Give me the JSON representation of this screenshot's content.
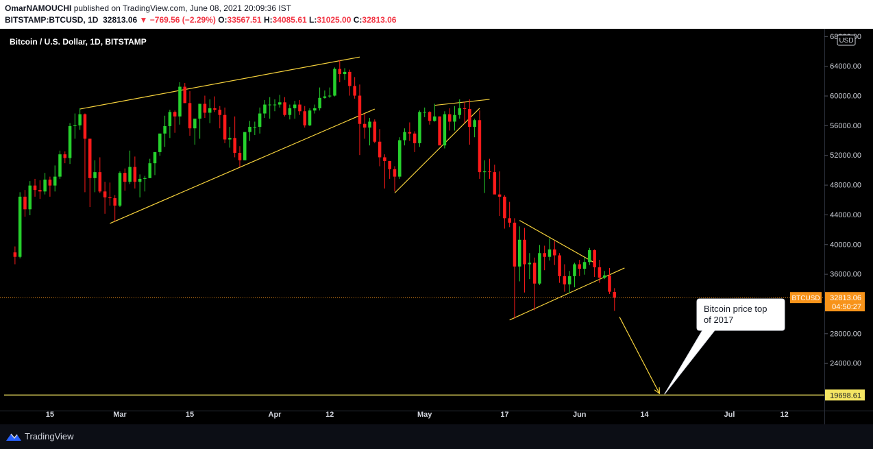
{
  "header": {
    "author": "OmarNAMOUCHI",
    "published_text": "published on TradingView.com, June 08, 2021 20:09:36 IST",
    "symbol": "BITSTAMP:BTCUSD, 1D",
    "last": "32813.06",
    "change": "−769.56 (−2.29%)",
    "open_label": "O:",
    "open": "33567.51",
    "high_label": "H:",
    "high": "34085.61",
    "low_label": "L:",
    "low": "31025.00",
    "close_label": "C:",
    "close": "32813.06"
  },
  "legend": {
    "title": "Bitcoin / U.S. Dollar, 1D, BITSTAMP"
  },
  "currency_badge": "USD",
  "price_tag": {
    "symbol": "BTCUSD",
    "price": "32813.06",
    "countdown": "04:50:27"
  },
  "level_tag": "19698.61",
  "annotation": {
    "line1": "Bitcoin price top",
    "line2": "of 2017"
  },
  "footer": {
    "brand": "TradingView"
  },
  "colors": {
    "up": "#26d12d",
    "down": "#ff1a1a",
    "trendline": "#f5d13c",
    "price_tag": "#f7931a",
    "level": "#f5e663",
    "grid_text": "#d1d4dc"
  },
  "chart_data": {
    "type": "candlestick",
    "y_axis_labels": [
      "68000.00",
      "64000.00",
      "60000.00",
      "56000.00",
      "52000.00",
      "48000.00",
      "44000.00",
      "40000.00",
      "36000.00",
      "32000.00",
      "28000.00",
      "24000.00"
    ],
    "ylim": [
      17600,
      69000
    ],
    "x_axis_labels": [
      "15",
      "Mar",
      "15",
      "Apr",
      "12",
      "May",
      "17",
      "Jun",
      "14",
      "Jul",
      "12"
    ],
    "x_axis_dates": [
      "2021-02-15",
      "2021-03-01",
      "2021-03-15",
      "2021-04-01",
      "2021-04-12",
      "2021-05-01",
      "2021-05-17",
      "2021-06-01",
      "2021-06-14",
      "2021-07-01",
      "2021-07-12"
    ],
    "date_range": [
      "2021-02-05",
      "2021-07-20"
    ],
    "horizontal_level": 19698.61,
    "last_price": 32813.06,
    "candles": [
      {
        "d": "2021-02-08",
        "o": 38900,
        "h": 39700,
        "l": 37300,
        "c": 38300
      },
      {
        "d": "2021-02-09",
        "o": 38300,
        "h": 47000,
        "l": 38100,
        "c": 46400
      },
      {
        "d": "2021-02-10",
        "o": 46400,
        "h": 47300,
        "l": 43700,
        "c": 44700
      },
      {
        "d": "2021-02-11",
        "o": 44700,
        "h": 48500,
        "l": 43900,
        "c": 47900
      },
      {
        "d": "2021-02-12",
        "o": 47900,
        "h": 48800,
        "l": 46400,
        "c": 47300
      },
      {
        "d": "2021-02-13",
        "o": 47300,
        "h": 48600,
        "l": 46100,
        "c": 47100
      },
      {
        "d": "2021-02-14",
        "o": 47100,
        "h": 49600,
        "l": 46700,
        "c": 48700
      },
      {
        "d": "2021-02-15",
        "o": 48700,
        "h": 49100,
        "l": 46400,
        "c": 47900
      },
      {
        "d": "2021-02-16",
        "o": 47900,
        "h": 50600,
        "l": 47100,
        "c": 49100
      },
      {
        "d": "2021-02-17",
        "o": 49100,
        "h": 52600,
        "l": 48800,
        "c": 52100
      },
      {
        "d": "2021-02-18",
        "o": 52100,
        "h": 52500,
        "l": 50900,
        "c": 51600
      },
      {
        "d": "2021-02-19",
        "o": 51600,
        "h": 56300,
        "l": 50800,
        "c": 55900
      },
      {
        "d": "2021-02-20",
        "o": 55900,
        "h": 57600,
        "l": 54200,
        "c": 56000
      },
      {
        "d": "2021-02-21",
        "o": 56000,
        "h": 58300,
        "l": 55400,
        "c": 57500
      },
      {
        "d": "2021-02-22",
        "o": 57500,
        "h": 57600,
        "l": 47000,
        "c": 54200
      },
      {
        "d": "2021-02-23",
        "o": 54200,
        "h": 54200,
        "l": 45000,
        "c": 48900
      },
      {
        "d": "2021-02-24",
        "o": 48900,
        "h": 51300,
        "l": 47000,
        "c": 49700
      },
      {
        "d": "2021-02-25",
        "o": 49700,
        "h": 51700,
        "l": 46900,
        "c": 47100
      },
      {
        "d": "2021-02-26",
        "o": 47100,
        "h": 48400,
        "l": 44100,
        "c": 46300
      },
      {
        "d": "2021-02-27",
        "o": 46300,
        "h": 48300,
        "l": 45200,
        "c": 46200
      },
      {
        "d": "2021-02-28",
        "o": 46200,
        "h": 46600,
        "l": 43100,
        "c": 45200
      },
      {
        "d": "2021-03-01",
        "o": 45200,
        "h": 49800,
        "l": 45000,
        "c": 49600
      },
      {
        "d": "2021-03-02",
        "o": 49600,
        "h": 50200,
        "l": 47200,
        "c": 48400
      },
      {
        "d": "2021-03-03",
        "o": 48400,
        "h": 52600,
        "l": 48100,
        "c": 50400
      },
      {
        "d": "2021-03-04",
        "o": 50400,
        "h": 51800,
        "l": 47500,
        "c": 48400
      },
      {
        "d": "2021-03-05",
        "o": 48400,
        "h": 49400,
        "l": 46300,
        "c": 48800
      },
      {
        "d": "2021-03-06",
        "o": 48800,
        "h": 49200,
        "l": 47100,
        "c": 48900
      },
      {
        "d": "2021-03-07",
        "o": 48900,
        "h": 51500,
        "l": 48900,
        "c": 50900
      },
      {
        "d": "2021-03-08",
        "o": 50900,
        "h": 52400,
        "l": 49300,
        "c": 52400
      },
      {
        "d": "2021-03-09",
        "o": 52400,
        "h": 54900,
        "l": 51900,
        "c": 54900
      },
      {
        "d": "2021-03-10",
        "o": 54900,
        "h": 57300,
        "l": 53100,
        "c": 55900
      },
      {
        "d": "2021-03-11",
        "o": 55900,
        "h": 58100,
        "l": 54300,
        "c": 57800
      },
      {
        "d": "2021-03-12",
        "o": 57800,
        "h": 58000,
        "l": 55000,
        "c": 57200
      },
      {
        "d": "2021-03-13",
        "o": 57200,
        "h": 61800,
        "l": 56100,
        "c": 61200
      },
      {
        "d": "2021-03-14",
        "o": 61200,
        "h": 61700,
        "l": 59000,
        "c": 59000
      },
      {
        "d": "2021-03-15",
        "o": 59000,
        "h": 60600,
        "l": 54600,
        "c": 55600
      },
      {
        "d": "2021-03-16",
        "o": 55600,
        "h": 56900,
        "l": 53400,
        "c": 56900
      },
      {
        "d": "2021-03-17",
        "o": 56900,
        "h": 58900,
        "l": 54200,
        "c": 58900
      },
      {
        "d": "2021-03-18",
        "o": 58900,
        "h": 60000,
        "l": 57000,
        "c": 57700
      },
      {
        "d": "2021-03-19",
        "o": 57700,
        "h": 59500,
        "l": 56300,
        "c": 58300
      },
      {
        "d": "2021-03-20",
        "o": 58300,
        "h": 59900,
        "l": 57800,
        "c": 58100
      },
      {
        "d": "2021-03-21",
        "o": 58100,
        "h": 58600,
        "l": 55600,
        "c": 57400
      },
      {
        "d": "2021-03-22",
        "o": 57400,
        "h": 58400,
        "l": 53600,
        "c": 54100
      },
      {
        "d": "2021-03-23",
        "o": 54100,
        "h": 55800,
        "l": 53000,
        "c": 54300
      },
      {
        "d": "2021-03-24",
        "o": 54300,
        "h": 57200,
        "l": 51700,
        "c": 52300
      },
      {
        "d": "2021-03-25",
        "o": 52300,
        "h": 53200,
        "l": 50400,
        "c": 51300
      },
      {
        "d": "2021-03-26",
        "o": 51300,
        "h": 55100,
        "l": 51300,
        "c": 55100
      },
      {
        "d": "2021-03-27",
        "o": 55100,
        "h": 56600,
        "l": 53900,
        "c": 55800
      },
      {
        "d": "2021-03-28",
        "o": 55800,
        "h": 56500,
        "l": 54700,
        "c": 55800
      },
      {
        "d": "2021-03-29",
        "o": 55800,
        "h": 58400,
        "l": 54900,
        "c": 57600
      },
      {
        "d": "2021-03-30",
        "o": 57600,
        "h": 59400,
        "l": 57000,
        "c": 58800
      },
      {
        "d": "2021-03-31",
        "o": 58800,
        "h": 59800,
        "l": 56900,
        "c": 58800
      },
      {
        "d": "2021-04-01",
        "o": 58800,
        "h": 59500,
        "l": 57900,
        "c": 58800
      },
      {
        "d": "2021-04-02",
        "o": 58800,
        "h": 60100,
        "l": 58400,
        "c": 59100
      },
      {
        "d": "2021-04-03",
        "o": 59100,
        "h": 59800,
        "l": 57200,
        "c": 57400
      },
      {
        "d": "2021-04-04",
        "o": 57400,
        "h": 58800,
        "l": 56800,
        "c": 58300
      },
      {
        "d": "2021-04-05",
        "o": 58300,
        "h": 59300,
        "l": 56900,
        "c": 58800
      },
      {
        "d": "2021-04-06",
        "o": 58800,
        "h": 59400,
        "l": 57400,
        "c": 57900
      },
      {
        "d": "2021-04-07",
        "o": 57900,
        "h": 58600,
        "l": 55700,
        "c": 56000
      },
      {
        "d": "2021-04-08",
        "o": 56000,
        "h": 58300,
        "l": 55900,
        "c": 58000
      },
      {
        "d": "2021-04-09",
        "o": 58000,
        "h": 58800,
        "l": 57600,
        "c": 58300
      },
      {
        "d": "2021-04-10",
        "o": 58300,
        "h": 61100,
        "l": 58000,
        "c": 59700
      },
      {
        "d": "2021-04-11",
        "o": 59700,
        "h": 60700,
        "l": 59600,
        "c": 59900
      },
      {
        "d": "2021-04-12",
        "o": 59900,
        "h": 61100,
        "l": 59700,
        "c": 60000
      },
      {
        "d": "2021-04-13",
        "o": 60000,
        "h": 63800,
        "l": 59900,
        "c": 63600
      },
      {
        "d": "2021-04-14",
        "o": 63600,
        "h": 64800,
        "l": 61800,
        "c": 62900
      },
      {
        "d": "2021-04-15",
        "o": 62900,
        "h": 63700,
        "l": 62100,
        "c": 63200
      },
      {
        "d": "2021-04-16",
        "o": 63200,
        "h": 63500,
        "l": 60000,
        "c": 61300
      },
      {
        "d": "2021-04-17",
        "o": 61300,
        "h": 62500,
        "l": 59600,
        "c": 60000
      },
      {
        "d": "2021-04-18",
        "o": 60000,
        "h": 61500,
        "l": 52000,
        "c": 56200
      },
      {
        "d": "2021-04-19",
        "o": 56200,
        "h": 57600,
        "l": 54200,
        "c": 55700
      },
      {
        "d": "2021-04-20",
        "o": 55700,
        "h": 57000,
        "l": 53300,
        "c": 56500
      },
      {
        "d": "2021-04-21",
        "o": 56500,
        "h": 56800,
        "l": 53600,
        "c": 53800
      },
      {
        "d": "2021-04-22",
        "o": 53800,
        "h": 55500,
        "l": 50500,
        "c": 51700
      },
      {
        "d": "2021-04-23",
        "o": 51700,
        "h": 52100,
        "l": 47500,
        "c": 51200
      },
      {
        "d": "2021-04-24",
        "o": 51200,
        "h": 51200,
        "l": 48800,
        "c": 50100
      },
      {
        "d": "2021-04-25",
        "o": 50100,
        "h": 50500,
        "l": 47100,
        "c": 49100
      },
      {
        "d": "2021-04-26",
        "o": 49100,
        "h": 54400,
        "l": 48800,
        "c": 54000
      },
      {
        "d": "2021-04-27",
        "o": 54000,
        "h": 55600,
        "l": 53300,
        "c": 55100
      },
      {
        "d": "2021-04-28",
        "o": 55100,
        "h": 56400,
        "l": 53900,
        "c": 54900
      },
      {
        "d": "2021-04-29",
        "o": 54900,
        "h": 55200,
        "l": 52400,
        "c": 53600
      },
      {
        "d": "2021-04-30",
        "o": 53600,
        "h": 58000,
        "l": 53100,
        "c": 57800
      },
      {
        "d": "2021-05-01",
        "o": 57800,
        "h": 58400,
        "l": 57100,
        "c": 57800
      },
      {
        "d": "2021-05-02",
        "o": 57800,
        "h": 57900,
        "l": 56100,
        "c": 56600
      },
      {
        "d": "2021-05-03",
        "o": 56600,
        "h": 58900,
        "l": 56500,
        "c": 57200
      },
      {
        "d": "2021-05-04",
        "o": 57200,
        "h": 57200,
        "l": 53500,
        "c": 53300
      },
      {
        "d": "2021-05-05",
        "o": 53300,
        "h": 57900,
        "l": 52900,
        "c": 57500
      },
      {
        "d": "2021-05-06",
        "o": 57500,
        "h": 58300,
        "l": 55300,
        "c": 56500
      },
      {
        "d": "2021-05-07",
        "o": 56500,
        "h": 58600,
        "l": 55300,
        "c": 57400
      },
      {
        "d": "2021-05-08",
        "o": 57400,
        "h": 59500,
        "l": 56900,
        "c": 58300
      },
      {
        "d": "2021-05-09",
        "o": 58300,
        "h": 59200,
        "l": 56300,
        "c": 58200
      },
      {
        "d": "2021-05-10",
        "o": 58200,
        "h": 59500,
        "l": 53400,
        "c": 55800
      },
      {
        "d": "2021-05-11",
        "o": 55800,
        "h": 56900,
        "l": 54400,
        "c": 56700
      },
      {
        "d": "2021-05-12",
        "o": 56700,
        "h": 58000,
        "l": 48800,
        "c": 49700
      },
      {
        "d": "2021-05-13",
        "o": 49700,
        "h": 51300,
        "l": 46900,
        "c": 49800
      },
      {
        "d": "2021-05-14",
        "o": 49800,
        "h": 51500,
        "l": 48800,
        "c": 49700
      },
      {
        "d": "2021-05-15",
        "o": 49700,
        "h": 50700,
        "l": 46800,
        "c": 46700
      },
      {
        "d": "2021-05-16",
        "o": 46700,
        "h": 49800,
        "l": 43800,
        "c": 46400
      },
      {
        "d": "2021-05-17",
        "o": 46400,
        "h": 46600,
        "l": 42100,
        "c": 43500
      },
      {
        "d": "2021-05-18",
        "o": 43500,
        "h": 45700,
        "l": 42300,
        "c": 42900
      },
      {
        "d": "2021-05-19",
        "o": 42900,
        "h": 43500,
        "l": 30000,
        "c": 37000
      },
      {
        "d": "2021-05-20",
        "o": 37000,
        "h": 42400,
        "l": 35000,
        "c": 40600
      },
      {
        "d": "2021-05-21",
        "o": 40600,
        "h": 42200,
        "l": 33500,
        "c": 37300
      },
      {
        "d": "2021-05-22",
        "o": 37300,
        "h": 38800,
        "l": 35300,
        "c": 37500
      },
      {
        "d": "2021-05-23",
        "o": 37500,
        "h": 38200,
        "l": 31100,
        "c": 34700
      },
      {
        "d": "2021-05-24",
        "o": 34700,
        "h": 39900,
        "l": 34500,
        "c": 38800
      },
      {
        "d": "2021-05-25",
        "o": 38800,
        "h": 39800,
        "l": 36500,
        "c": 38300
      },
      {
        "d": "2021-05-26",
        "o": 38300,
        "h": 40800,
        "l": 37800,
        "c": 39300
      },
      {
        "d": "2021-05-27",
        "o": 39300,
        "h": 40400,
        "l": 37200,
        "c": 38500
      },
      {
        "d": "2021-05-28",
        "o": 38500,
        "h": 38800,
        "l": 34800,
        "c": 35700
      },
      {
        "d": "2021-05-29",
        "o": 35700,
        "h": 37300,
        "l": 33600,
        "c": 34600
      },
      {
        "d": "2021-05-30",
        "o": 34600,
        "h": 36400,
        "l": 33400,
        "c": 35700
      },
      {
        "d": "2021-05-31",
        "o": 35700,
        "h": 37500,
        "l": 34200,
        "c": 37300
      },
      {
        "d": "2021-06-01",
        "o": 37300,
        "h": 37900,
        "l": 35700,
        "c": 36700
      },
      {
        "d": "2021-06-02",
        "o": 36700,
        "h": 38200,
        "l": 35900,
        "c": 37600
      },
      {
        "d": "2021-06-03",
        "o": 37600,
        "h": 39500,
        "l": 37200,
        "c": 39200
      },
      {
        "d": "2021-06-04",
        "o": 39200,
        "h": 39300,
        "l": 35600,
        "c": 36900
      },
      {
        "d": "2021-06-05",
        "o": 36900,
        "h": 37900,
        "l": 34800,
        "c": 35500
      },
      {
        "d": "2021-06-06",
        "o": 35500,
        "h": 36400,
        "l": 35300,
        "c": 35800
      },
      {
        "d": "2021-06-07",
        "o": 35800,
        "h": 36800,
        "l": 33300,
        "c": 33600
      },
      {
        "d": "2021-06-08",
        "o": 33567.51,
        "h": 34085.61,
        "l": 31025,
        "c": 32813.06
      }
    ],
    "trendlines": [
      [
        [
          "2021-02-21",
          58200
        ],
        [
          "2021-04-18",
          65200
        ]
      ],
      [
        [
          "2021-02-27",
          42800
        ],
        [
          "2021-04-21",
          58200
        ]
      ],
      [
        [
          "2021-04-25",
          46900
        ],
        [
          "2021-05-12",
          58300
        ]
      ],
      [
        [
          "2021-05-03",
          58700
        ],
        [
          "2021-05-14",
          59500
        ]
      ],
      [
        [
          "2021-05-18",
          29800
        ],
        [
          "2021-06-10",
          36800
        ]
      ],
      [
        [
          "2021-05-20",
          43200
        ],
        [
          "2021-06-04",
          37500
        ]
      ]
    ],
    "arrow": [
      [
        "2021-06-09",
        30200
      ],
      [
        "2021-06-17",
        19900
      ]
    ],
    "callout_anchor": [
      "2021-06-18",
      19800
    ]
  }
}
